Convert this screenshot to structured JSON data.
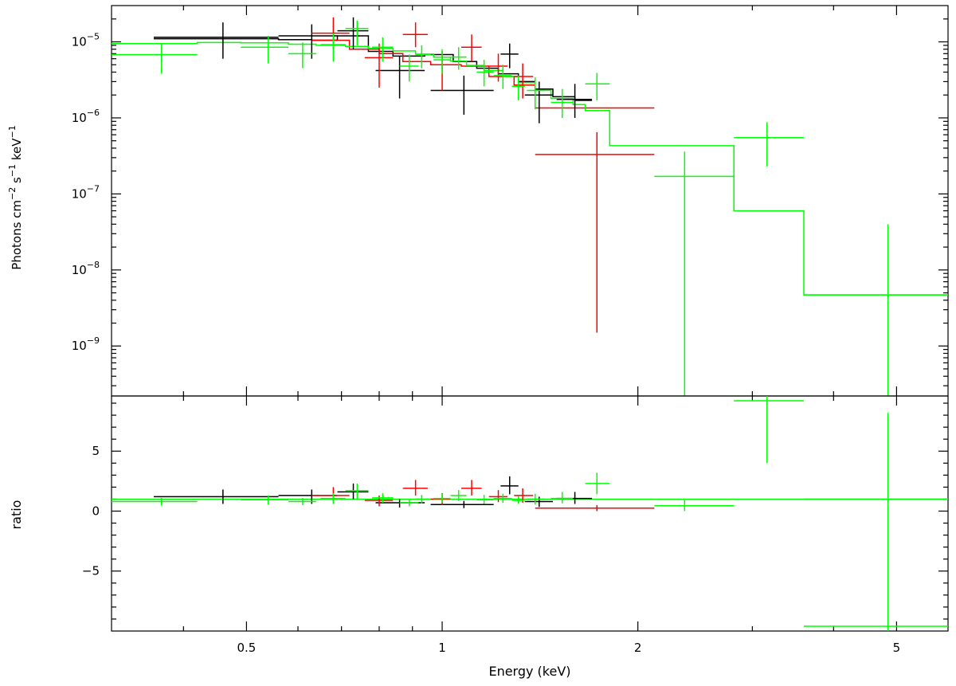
{
  "chart_data": [
    {
      "type": "scatter",
      "panel": "spectrum",
      "ylabel": "Photons cm^-2 s^-1 keV^-1",
      "yscale": "log",
      "ylim": [
        2.2e-10,
        3e-05
      ],
      "xscale": "log",
      "xlim": [
        0.31,
        6.0
      ],
      "yticks": [
        {
          "value": 1e-05,
          "exp": "-5"
        },
        {
          "value": 1e-06,
          "exp": "-6"
        },
        {
          "value": 1e-07,
          "exp": "-7"
        },
        {
          "value": 1e-08,
          "exp": "-8"
        },
        {
          "value": 1e-09,
          "exp": "-9"
        }
      ],
      "series": [
        {
          "color": "#000000",
          "points": [
            {
              "x": 0.46,
              "xlo": 0.36,
              "xhi": 0.56,
              "y": 1.15e-05,
              "ylo": 6e-06,
              "yhi": 1.8e-05
            },
            {
              "x": 0.63,
              "xlo": 0.56,
              "xhi": 0.69,
              "y": 1.2e-05,
              "ylo": 6e-06,
              "yhi": 1.7e-05
            },
            {
              "x": 0.73,
              "xlo": 0.69,
              "xhi": 0.77,
              "y": 1.4e-05,
              "ylo": 8e-06,
              "yhi": 2.1e-05
            },
            {
              "x": 0.86,
              "xlo": 0.79,
              "xhi": 0.94,
              "y": 4.2e-06,
              "ylo": 1.8e-06,
              "yhi": 6.5e-06
            },
            {
              "x": 1.08,
              "xlo": 0.96,
              "xhi": 1.2,
              "y": 2.3e-06,
              "ylo": 1.1e-06,
              "yhi": 3.6e-06
            },
            {
              "x": 1.27,
              "xlo": 1.23,
              "xhi": 1.31,
              "y": 6.9e-06,
              "ylo": 4.5e-06,
              "yhi": 9.5e-06
            },
            {
              "x": 1.41,
              "xlo": 1.34,
              "xhi": 1.48,
              "y": 2e-06,
              "ylo": 8.5e-07,
              "yhi": 3e-06
            },
            {
              "x": 1.6,
              "xlo": 1.5,
              "xhi": 1.7,
              "y": 1.75e-06,
              "ylo": 1e-06,
              "yhi": 2.8e-06
            }
          ]
        },
        {
          "color": "#ff0000",
          "points": [
            {
              "x": 0.68,
              "xlo": 0.63,
              "xhi": 0.72,
              "y": 1.3e-05,
              "ylo": 8e-06,
              "yhi": 2.1e-05
            },
            {
              "x": 0.8,
              "xlo": 0.76,
              "xhi": 0.84,
              "y": 6.2e-06,
              "ylo": 2.5e-06,
              "yhi": 9.5e-06
            },
            {
              "x": 0.91,
              "xlo": 0.87,
              "xhi": 0.95,
              "y": 1.25e-05,
              "ylo": 8.5e-06,
              "yhi": 1.8e-05
            },
            {
              "x": 1.0,
              "xlo": 0.96,
              "xhi": 1.03,
              "y": 5e-06,
              "ylo": 2.3e-06,
              "yhi": 7.5e-06
            },
            {
              "x": 1.11,
              "xlo": 1.07,
              "xhi": 1.15,
              "y": 8.5e-06,
              "ylo": 5.5e-06,
              "yhi": 1.25e-05
            },
            {
              "x": 1.22,
              "xlo": 1.18,
              "xhi": 1.26,
              "y": 4.8e-06,
              "ylo": 3e-06,
              "yhi": 7e-06
            },
            {
              "x": 1.33,
              "xlo": 1.29,
              "xhi": 1.38,
              "y": 3.5e-06,
              "ylo": 1.8e-06,
              "yhi": 5.2e-06
            },
            {
              "x": 1.73,
              "xlo": 1.39,
              "xhi": 2.12,
              "y": 3.3e-07,
              "ylo": 1.5e-09,
              "yhi": 6.5e-07
            }
          ]
        },
        {
          "color": "#00ff00",
          "points": [
            {
              "x": 0.37,
              "xlo": 0.31,
              "xhi": 0.42,
              "y": 6.8e-06,
              "ylo": 3.8e-06,
              "yhi": 9.5e-06
            },
            {
              "x": 0.54,
              "xlo": 0.49,
              "xhi": 0.58,
              "y": 8.5e-06,
              "ylo": 5.2e-06,
              "yhi": 1.2e-05
            },
            {
              "x": 0.61,
              "xlo": 0.58,
              "xhi": 0.64,
              "y": 7e-06,
              "ylo": 4.5e-06,
              "yhi": 9.8e-06
            },
            {
              "x": 0.68,
              "xlo": 0.65,
              "xhi": 0.71,
              "y": 9.2e-06,
              "ylo": 5.5e-06,
              "yhi": 1.3e-05
            },
            {
              "x": 0.74,
              "xlo": 0.71,
              "xhi": 0.77,
              "y": 1.5e-05,
              "ylo": 9e-06,
              "yhi": 1.9e-05
            },
            {
              "x": 0.81,
              "xlo": 0.78,
              "xhi": 0.84,
              "y": 8.5e-06,
              "ylo": 5.5e-06,
              "yhi": 1.15e-05
            },
            {
              "x": 0.89,
              "xlo": 0.86,
              "xhi": 0.92,
              "y": 4.8e-06,
              "ylo": 3e-06,
              "yhi": 6.8e-06
            },
            {
              "x": 0.93,
              "xlo": 0.91,
              "xhi": 0.96,
              "y": 6.8e-06,
              "ylo": 4.5e-06,
              "yhi": 9e-06
            },
            {
              "x": 1.0,
              "xlo": 0.97,
              "xhi": 1.03,
              "y": 5.8e-06,
              "ylo": 3.8e-06,
              "yhi": 8e-06
            },
            {
              "x": 1.06,
              "xlo": 1.03,
              "xhi": 1.09,
              "y": 6.3e-06,
              "ylo": 4.3e-06,
              "yhi": 8.5e-06
            },
            {
              "x": 1.16,
              "xlo": 1.13,
              "xhi": 1.2,
              "y": 4e-06,
              "ylo": 2.6e-06,
              "yhi": 5.8e-06
            },
            {
              "x": 1.24,
              "xlo": 1.2,
              "xhi": 1.28,
              "y": 3.6e-06,
              "ylo": 2.4e-06,
              "yhi": 5e-06
            },
            {
              "x": 1.31,
              "xlo": 1.28,
              "xhi": 1.34,
              "y": 2.6e-06,
              "ylo": 1.7e-06,
              "yhi": 3.6e-06
            },
            {
              "x": 1.39,
              "xlo": 1.35,
              "xhi": 1.44,
              "y": 2.3e-06,
              "ylo": 1.3e-06,
              "yhi": 3.4e-06
            },
            {
              "x": 1.53,
              "xlo": 1.47,
              "xhi": 1.59,
              "y": 1.6e-06,
              "ylo": 1e-06,
              "yhi": 2.4e-06
            },
            {
              "x": 1.73,
              "xlo": 1.66,
              "xhi": 1.81,
              "y": 2.8e-06,
              "ylo": 1.7e-06,
              "yhi": 3.9e-06
            },
            {
              "x": 2.36,
              "xlo": 2.12,
              "xhi": 2.81,
              "y": 1.7e-07,
              "ylo": 2.2e-10,
              "yhi": 3.6e-07
            },
            {
              "x": 3.16,
              "xlo": 2.81,
              "xhi": 3.6,
              "y": 5.5e-07,
              "ylo": 2.3e-07,
              "yhi": 8.8e-07
            },
            {
              "x": 4.85,
              "xlo": 3.6,
              "xhi": 6.0,
              "y": 4.7e-09,
              "ylo": 2.2e-10,
              "yhi": 4e-08
            }
          ]
        }
      ],
      "models": [
        {
          "color": "#000000",
          "edges": [
            0.36,
            0.56,
            0.63,
            0.69,
            0.77,
            0.84,
            0.94,
            1.04,
            1.13,
            1.22,
            1.31,
            1.39,
            1.48,
            1.6,
            1.7
          ],
          "values": [
            1.1e-05,
            1.07e-05,
            1.05e-05,
            1.2e-05,
            7.5e-06,
            6.5e-06,
            6.8e-06,
            5.5e-06,
            4.5e-06,
            3.8e-06,
            3e-06,
            2.4e-06,
            1.9e-06,
            1.7e-06
          ]
        },
        {
          "color": "#ff0000",
          "edges": [
            0.63,
            0.72,
            0.8,
            0.87,
            0.96,
            1.07,
            1.18,
            1.29,
            1.39,
            2.12
          ],
          "values": [
            1.05e-05,
            8e-06,
            7e-06,
            5.5e-06,
            5e-06,
            4.8e-06,
            3.5e-06,
            2.7e-06,
            1.35e-06
          ]
        },
        {
          "color": "#00ff00",
          "edges": [
            0.31,
            0.42,
            0.49,
            0.58,
            0.64,
            0.71,
            0.77,
            0.84,
            0.91,
            0.97,
            1.03,
            1.09,
            1.16,
            1.24,
            1.31,
            1.39,
            1.47,
            1.59,
            1.66,
            1.81,
            2.81,
            3.6,
            6.0
          ],
          "values": [
            9.5e-06,
            9.8e-06,
            9.7e-06,
            9.3e-06,
            9e-06,
            8.7e-06,
            8.2e-06,
            7.6e-06,
            6.9e-06,
            6.3e-06,
            5.6e-06,
            4.9e-06,
            4.2e-06,
            3.5e-06,
            2.9e-06,
            2.3e-06,
            1.8e-06,
            1.5e-06,
            1.25e-06,
            4.3e-07,
            6e-08,
            4.7e-09
          ]
        }
      ]
    },
    {
      "type": "scatter",
      "panel": "ratio",
      "xlabel": "Energy (keV)",
      "ylabel": "ratio",
      "yscale": "linear",
      "ylim": [
        -10,
        9.6
      ],
      "xscale": "log",
      "xlim": [
        0.31,
        6.0
      ],
      "yticks": [
        {
          "value": 5,
          "label": "5"
        },
        {
          "value": 0,
          "label": "0"
        },
        {
          "value": -5,
          "label": "−5"
        }
      ],
      "xticks": [
        {
          "value": 0.5,
          "label": "0.5"
        },
        {
          "value": 1,
          "label": "1"
        },
        {
          "value": 2,
          "label": "2"
        },
        {
          "value": 5,
          "label": "5"
        }
      ],
      "xminor": [
        0.4,
        0.6,
        0.7,
        0.8,
        0.9,
        3,
        4
      ],
      "reference_line": 1,
      "series": [
        {
          "color": "#000000",
          "points": [
            {
              "x": 0.46,
              "xlo": 0.36,
              "xhi": 0.56,
              "y": 1.2,
              "ylo": 0.6,
              "yhi": 1.8
            },
            {
              "x": 0.63,
              "xlo": 0.56,
              "xhi": 0.69,
              "y": 1.3,
              "ylo": 0.6,
              "yhi": 1.8
            },
            {
              "x": 0.73,
              "xlo": 0.69,
              "xhi": 0.77,
              "y": 1.6,
              "ylo": 1.0,
              "yhi": 2.3
            },
            {
              "x": 0.86,
              "xlo": 0.79,
              "xhi": 0.94,
              "y": 0.7,
              "ylo": 0.3,
              "yhi": 1.0
            },
            {
              "x": 1.08,
              "xlo": 0.96,
              "xhi": 1.2,
              "y": 0.55,
              "ylo": 0.25,
              "yhi": 0.85
            },
            {
              "x": 1.27,
              "xlo": 1.23,
              "xhi": 1.31,
              "y": 2.1,
              "ylo": 1.4,
              "yhi": 2.9
            },
            {
              "x": 1.41,
              "xlo": 1.34,
              "xhi": 1.48,
              "y": 0.8,
              "ylo": 0.35,
              "yhi": 1.2
            },
            {
              "x": 1.6,
              "xlo": 1.5,
              "xhi": 1.7,
              "y": 1.05,
              "ylo": 0.6,
              "yhi": 1.6
            }
          ]
        },
        {
          "color": "#ff0000",
          "points": [
            {
              "x": 0.68,
              "xlo": 0.63,
              "xhi": 0.72,
              "y": 1.3,
              "ylo": 0.8,
              "yhi": 2.0
            },
            {
              "x": 0.8,
              "xlo": 0.76,
              "xhi": 0.84,
              "y": 0.9,
              "ylo": 0.4,
              "yhi": 1.3
            },
            {
              "x": 0.91,
              "xlo": 0.87,
              "xhi": 0.95,
              "y": 1.9,
              "ylo": 1.3,
              "yhi": 2.6
            },
            {
              "x": 1.0,
              "xlo": 0.96,
              "xhi": 1.03,
              "y": 1.0,
              "ylo": 0.5,
              "yhi": 1.5
            },
            {
              "x": 1.11,
              "xlo": 1.07,
              "xhi": 1.15,
              "y": 1.9,
              "ylo": 1.3,
              "yhi": 2.6
            },
            {
              "x": 1.22,
              "xlo": 1.18,
              "xhi": 1.26,
              "y": 1.2,
              "ylo": 0.75,
              "yhi": 1.75
            },
            {
              "x": 1.33,
              "xlo": 1.29,
              "xhi": 1.38,
              "y": 1.3,
              "ylo": 0.7,
              "yhi": 1.9
            },
            {
              "x": 1.73,
              "xlo": 1.39,
              "xhi": 2.12,
              "y": 0.25,
              "ylo": 0.0,
              "yhi": 0.5
            }
          ]
        },
        {
          "color": "#00ff00",
          "points": [
            {
              "x": 0.37,
              "xlo": 0.31,
              "xhi": 0.42,
              "y": 0.8,
              "ylo": 0.45,
              "yhi": 1.1
            },
            {
              "x": 0.54,
              "xlo": 0.49,
              "xhi": 0.58,
              "y": 0.95,
              "ylo": 0.55,
              "yhi": 1.3
            },
            {
              "x": 0.61,
              "xlo": 0.58,
              "xhi": 0.64,
              "y": 0.8,
              "ylo": 0.5,
              "yhi": 1.1
            },
            {
              "x": 0.68,
              "xlo": 0.65,
              "xhi": 0.71,
              "y": 1.05,
              "ylo": 0.6,
              "yhi": 1.5
            },
            {
              "x": 0.74,
              "xlo": 0.71,
              "xhi": 0.77,
              "y": 1.7,
              "ylo": 1.0,
              "yhi": 2.3
            },
            {
              "x": 0.81,
              "xlo": 0.78,
              "xhi": 0.84,
              "y": 1.1,
              "ylo": 0.7,
              "yhi": 1.5
            },
            {
              "x": 0.89,
              "xlo": 0.86,
              "xhi": 0.92,
              "y": 0.7,
              "ylo": 0.4,
              "yhi": 1.0
            },
            {
              "x": 0.93,
              "xlo": 0.91,
              "xhi": 0.96,
              "y": 1.0,
              "ylo": 0.65,
              "yhi": 1.35
            },
            {
              "x": 1.0,
              "xlo": 0.97,
              "xhi": 1.03,
              "y": 1.05,
              "ylo": 0.7,
              "yhi": 1.45
            },
            {
              "x": 1.06,
              "xlo": 1.03,
              "xhi": 1.09,
              "y": 1.3,
              "ylo": 0.85,
              "yhi": 1.75
            },
            {
              "x": 1.16,
              "xlo": 1.13,
              "xhi": 1.2,
              "y": 0.95,
              "ylo": 0.6,
              "yhi": 1.35
            },
            {
              "x": 1.24,
              "xlo": 1.2,
              "xhi": 1.28,
              "y": 1.05,
              "ylo": 0.7,
              "yhi": 1.45
            },
            {
              "x": 1.31,
              "xlo": 1.28,
              "xhi": 1.34,
              "y": 0.9,
              "ylo": 0.6,
              "yhi": 1.25
            },
            {
              "x": 1.39,
              "xlo": 1.35,
              "xhi": 1.44,
              "y": 1.0,
              "ylo": 0.55,
              "yhi": 1.45
            },
            {
              "x": 1.53,
              "xlo": 1.47,
              "xhi": 1.59,
              "y": 1.05,
              "ylo": 0.65,
              "yhi": 1.6
            },
            {
              "x": 1.73,
              "xlo": 1.66,
              "xhi": 1.81,
              "y": 2.3,
              "ylo": 1.4,
              "yhi": 3.2
            },
            {
              "x": 2.36,
              "xlo": 2.12,
              "xhi": 2.81,
              "y": 0.45,
              "ylo": 0.0,
              "yhi": 0.9
            },
            {
              "x": 3.16,
              "xlo": 2.81,
              "xhi": 3.6,
              "y": 9.2,
              "ylo": 4.0,
              "yhi": 9.6
            },
            {
              "x": 4.85,
              "xlo": 3.6,
              "xhi": 6.0,
              "y": 1.0,
              "ylo": -10,
              "yhi": 8.2
            }
          ]
        }
      ],
      "extra_segments": [
        {
          "color": "#00ff00",
          "x1": 3.6,
          "x2": 6.0,
          "y": -9.6
        }
      ]
    }
  ]
}
